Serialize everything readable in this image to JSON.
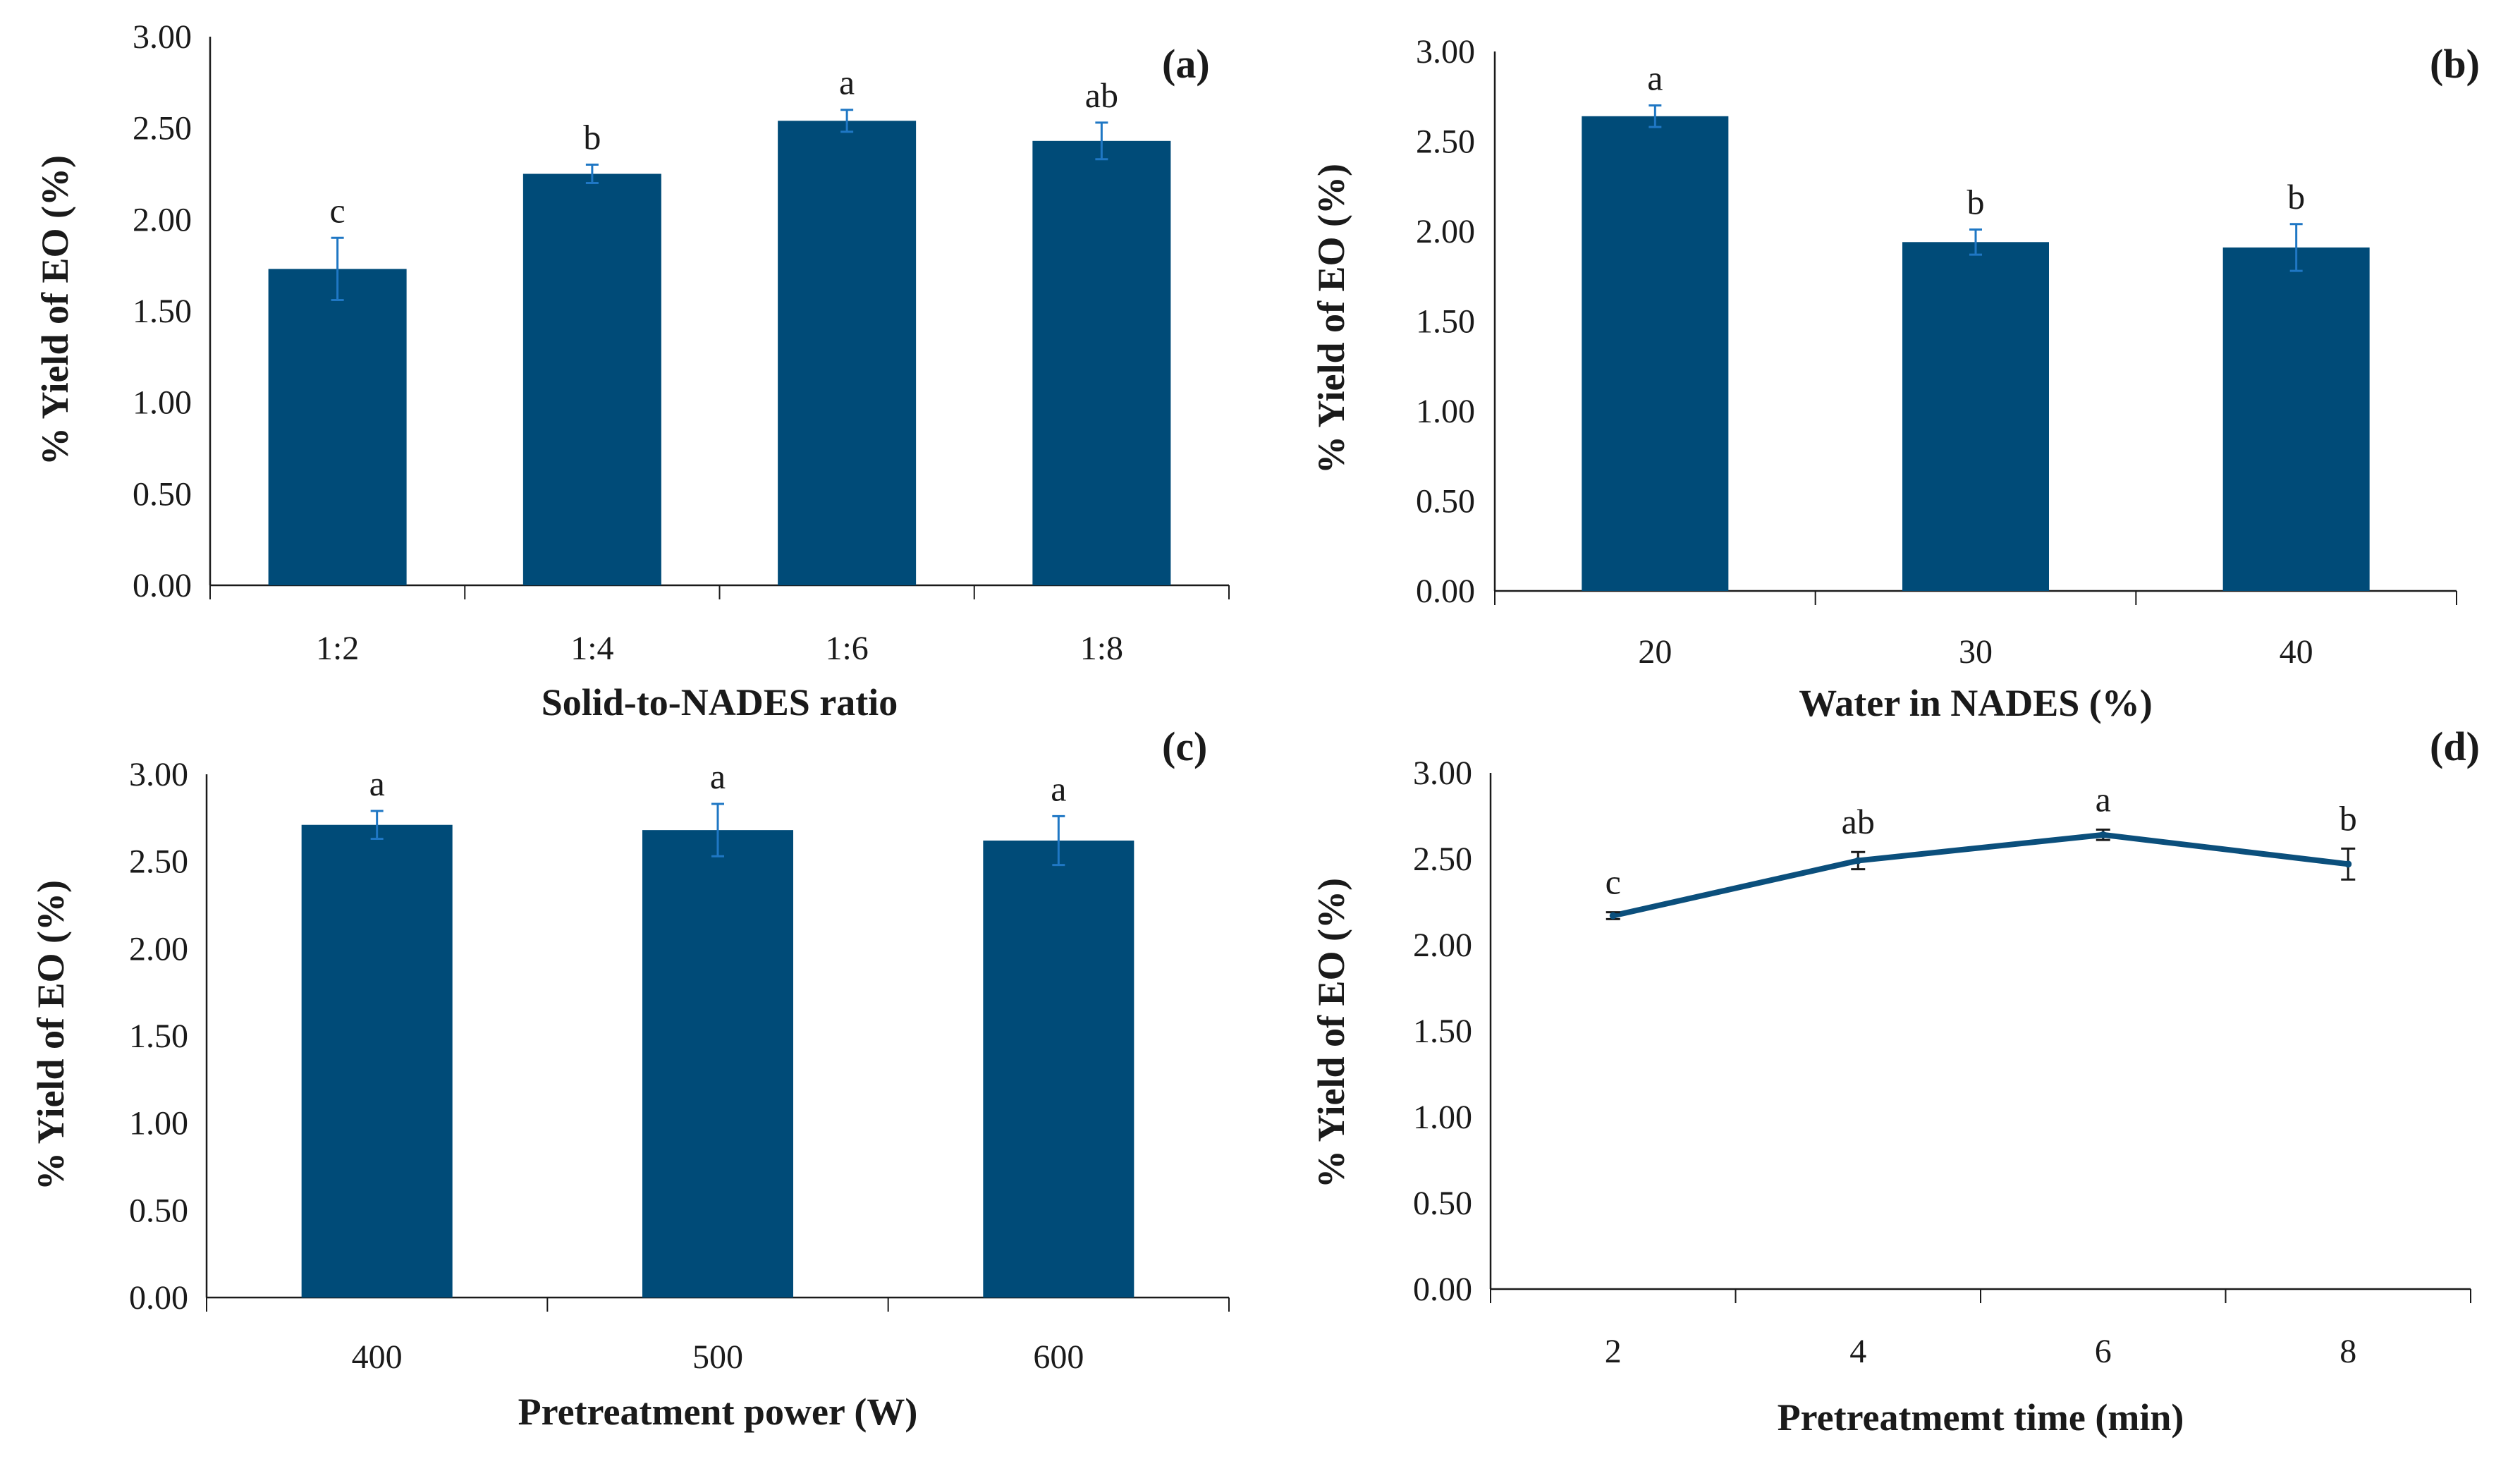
{
  "colors": {
    "bar": "#004B78",
    "error_bar": "#1F77C4",
    "line": "#0B4F7C",
    "line_error": "#1a1a1a",
    "axis": "#1a1a1a"
  },
  "chart_data": [
    {
      "id": "a",
      "type": "bar",
      "panel_label": "(a)",
      "xlabel": "Solid-to-NADES  ratio",
      "ylabel": "% Yield of EO (%)",
      "ylim": [
        0,
        3
      ],
      "yticks": [
        "0.00",
        "0.50",
        "1.00",
        "1.50",
        "2.00",
        "2.50",
        "3.00"
      ],
      "categories": [
        "1:2",
        "1:4",
        "1:6",
        "1:8"
      ],
      "values": [
        1.73,
        2.25,
        2.54,
        2.43
      ],
      "errors": [
        0.17,
        0.05,
        0.06,
        0.1
      ],
      "significance": [
        "c",
        "b",
        "a",
        "ab"
      ]
    },
    {
      "id": "b",
      "type": "bar",
      "panel_label": "(b)",
      "xlabel": "Water  in NADES (%)",
      "ylabel": "% Yield of EO (%)",
      "ylim": [
        0,
        3
      ],
      "yticks": [
        "0.00",
        "0.50",
        "1.00",
        "1.50",
        "2.00",
        "2.50",
        "3.00"
      ],
      "categories": [
        "20",
        "30",
        "40"
      ],
      "values": [
        2.64,
        1.94,
        1.91
      ],
      "errors": [
        0.06,
        0.07,
        0.13
      ],
      "significance": [
        "a",
        "b",
        "b"
      ]
    },
    {
      "id": "c",
      "type": "bar",
      "panel_label": "(c)",
      "xlabel": "Pretreatment  power (W)",
      "ylabel": "% Yield of EO (%)",
      "ylim": [
        0,
        3
      ],
      "yticks": [
        "0.00",
        "0.50",
        "1.00",
        "1.50",
        "2.00",
        "2.50",
        "3.00"
      ],
      "categories": [
        "400",
        "500",
        "600"
      ],
      "values": [
        2.71,
        2.68,
        2.62
      ],
      "errors": [
        0.08,
        0.15,
        0.14
      ],
      "significance": [
        "a",
        "a",
        "a"
      ]
    },
    {
      "id": "d",
      "type": "line",
      "panel_label": "(d)",
      "xlabel": "Pretreatmemt time (min)",
      "ylabel": "% Yield of EO (%)",
      "ylim": [
        0,
        3
      ],
      "yticks": [
        "0.00",
        "0.50",
        "1.00",
        "1.50",
        "2.00",
        "2.50",
        "3.00"
      ],
      "categories": [
        "2",
        "4",
        "6",
        "8"
      ],
      "values": [
        2.17,
        2.49,
        2.64,
        2.47
      ],
      "errors": [
        0.02,
        0.05,
        0.03,
        0.09
      ],
      "significance": [
        "c",
        "ab",
        "a",
        "b"
      ]
    }
  ]
}
